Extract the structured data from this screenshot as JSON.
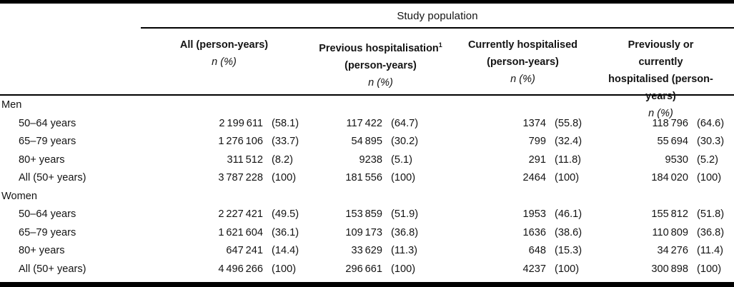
{
  "header": {
    "span_title": "Study population",
    "columns": [
      {
        "line1": "All (person-years)",
        "n_label": "n",
        "pct_label": "(%)"
      },
      {
        "line1": "Previous hospitalisation",
        "sup": "1",
        "line2": "(person-years)",
        "n_label": "n",
        "pct_label": "(%)"
      },
      {
        "line1": "Currently hospitalised",
        "line2": "(person-years)",
        "n_label": "n",
        "pct_label": "(%)"
      },
      {
        "line1": "Previously or currently",
        "line2": "hospitalised (person-years)",
        "n_label": "n",
        "pct_label": "(%)"
      }
    ]
  },
  "body": {
    "rows": [
      {
        "type": "section",
        "label": "Men"
      },
      {
        "type": "data",
        "label": "50–64 years",
        "all": {
          "n": "2 199 611",
          "pct": "(58.1)"
        },
        "prev": {
          "n": "117 422",
          "pct": "(64.7)"
        },
        "curr": {
          "n": "1374",
          "pct": "(55.8)"
        },
        "prevcurr": {
          "n": "118 796",
          "pct": "(64.6)"
        }
      },
      {
        "type": "data",
        "label": "65–79 years",
        "all": {
          "n": "1 276 106",
          "pct": "(33.7)"
        },
        "prev": {
          "n": "54 895",
          "pct": "(30.2)"
        },
        "curr": {
          "n": "799",
          "pct": "(32.4)"
        },
        "prevcurr": {
          "n": "55 694",
          "pct": "(30.3)"
        }
      },
      {
        "type": "data",
        "label": "80+ years",
        "all": {
          "n": "311 512",
          "pct": "(8.2)"
        },
        "prev": {
          "n": "9238",
          "pct": "(5.1)"
        },
        "curr": {
          "n": "291",
          "pct": "(11.8)"
        },
        "prevcurr": {
          "n": "9530",
          "pct": "(5.2)"
        }
      },
      {
        "type": "data",
        "label": "All (50+ years)",
        "all": {
          "n": "3 787 228",
          "pct": "(100)"
        },
        "prev": {
          "n": "181 556",
          "pct": "(100)"
        },
        "curr": {
          "n": "2464",
          "pct": "(100)"
        },
        "prevcurr": {
          "n": "184 020",
          "pct": "(100)"
        }
      },
      {
        "type": "section",
        "label": "Women"
      },
      {
        "type": "data",
        "label": "50–64 years",
        "all": {
          "n": "2 227 421",
          "pct": "(49.5)"
        },
        "prev": {
          "n": "153 859",
          "pct": "(51.9)"
        },
        "curr": {
          "n": "1953",
          "pct": "(46.1)"
        },
        "prevcurr": {
          "n": "155 812",
          "pct": "(51.8)"
        }
      },
      {
        "type": "data",
        "label": "65–79 years",
        "all": {
          "n": "1 621 604",
          "pct": "(36.1)"
        },
        "prev": {
          "n": "109 173",
          "pct": "(36.8)"
        },
        "curr": {
          "n": "1636",
          "pct": "(38.6)"
        },
        "prevcurr": {
          "n": "110 809",
          "pct": "(36.8)"
        }
      },
      {
        "type": "data",
        "label": "80+ years",
        "all": {
          "n": "647 241",
          "pct": "(14.4)"
        },
        "prev": {
          "n": "33 629",
          "pct": "(11.3)"
        },
        "curr": {
          "n": "648",
          "pct": "(15.3)"
        },
        "prevcurr": {
          "n": "34 276",
          "pct": "(11.4)"
        }
      },
      {
        "type": "data",
        "label": "All (50+ years)",
        "all": {
          "n": "4 496 266",
          "pct": "(100)"
        },
        "prev": {
          "n": "296 661",
          "pct": "(100)"
        },
        "curr": {
          "n": "4237",
          "pct": "(100)"
        },
        "prevcurr": {
          "n": "300 898",
          "pct": "(100)"
        }
      }
    ]
  },
  "colors": {
    "background": "#ffffff",
    "text": "#141414",
    "rule": "#000000"
  }
}
